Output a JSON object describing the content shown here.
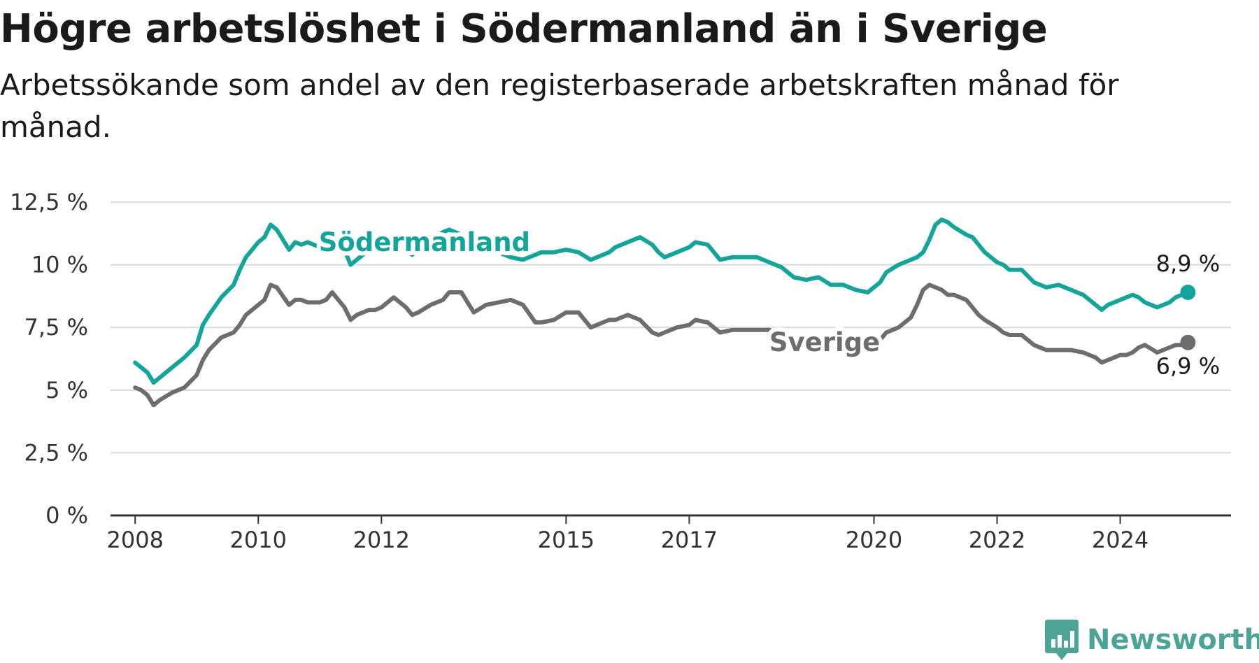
{
  "title": "Högre arbetslöshet i Södermanland än i Sverige",
  "subtitle": "Arbetssökande som andel av den registerbaserade arbetskraften månad för månad.",
  "brand": {
    "name": "Newsworthy",
    "icon": "newsworthy-logo-icon",
    "color": "#4da396"
  },
  "chart_data": {
    "type": "line",
    "title": "Högre arbetslöshet i Södermanland än i Sverige",
    "subtitle": "Arbetssökande som andel av den registerbaserade arbetskraften månad för månad.",
    "xlabel": "",
    "ylabel": "",
    "xlim": [
      2007.6,
      2025.8
    ],
    "ylim": [
      0,
      12.5
    ],
    "x_ticks": [
      {
        "value": 2008,
        "label": "2008"
      },
      {
        "value": 2010,
        "label": "2010"
      },
      {
        "value": 2012,
        "label": "2012"
      },
      {
        "value": 2015,
        "label": "2015"
      },
      {
        "value": 2017,
        "label": "2017"
      },
      {
        "value": 2020,
        "label": "2020"
      },
      {
        "value": 2022,
        "label": "2022"
      },
      {
        "value": 2024,
        "label": "2024"
      }
    ],
    "y_ticks": [
      {
        "value": 0,
        "label": "0 %"
      },
      {
        "value": 2.5,
        "label": "2,5 %"
      },
      {
        "value": 5,
        "label": "5 %"
      },
      {
        "value": 7.5,
        "label": "7,5 %"
      },
      {
        "value": 10,
        "label": "10 %"
      },
      {
        "value": 12.5,
        "label": "12,5 %"
      }
    ],
    "grid": true,
    "legend": "inline labels",
    "series": [
      {
        "name": "Södermanland",
        "color": "#14a49a",
        "end_label": "8,9 %",
        "x": [
          2008.0,
          2008.1,
          2008.2,
          2008.3,
          2008.4,
          2008.6,
          2008.8,
          2009.0,
          2009.1,
          2009.2,
          2009.4,
          2009.6,
          2009.7,
          2009.8,
          2009.9,
          2010.0,
          2010.1,
          2010.2,
          2010.3,
          2010.5,
          2010.6,
          2010.7,
          2010.8,
          2010.9,
          2011.0,
          2011.1,
          2011.2,
          2011.4,
          2011.5,
          2011.6,
          2011.7,
          2011.8,
          2011.9,
          2012.0,
          2012.2,
          2012.4,
          2012.5,
          2012.6,
          2012.8,
          2013.0,
          2013.1,
          2013.3,
          2013.5,
          2013.7,
          2013.9,
          2014.1,
          2014.3,
          2014.5,
          2014.6,
          2014.8,
          2015.0,
          2015.2,
          2015.4,
          2015.6,
          2015.7,
          2015.8,
          2016.0,
          2016.2,
          2016.4,
          2016.5,
          2016.6,
          2016.8,
          2017.0,
          2017.1,
          2017.3,
          2017.5,
          2017.7,
          2017.9,
          2018.1,
          2018.3,
          2018.5,
          2018.7,
          2018.9,
          2019.1,
          2019.3,
          2019.5,
          2019.7,
          2019.9,
          2020.1,
          2020.2,
          2020.4,
          2020.6,
          2020.7,
          2020.8,
          2020.9,
          2021.0,
          2021.1,
          2021.2,
          2021.3,
          2021.5,
          2021.6,
          2021.7,
          2021.8,
          2022.0,
          2022.1,
          2022.2,
          2022.4,
          2022.6,
          2022.8,
          2023.0,
          2023.1,
          2023.2,
          2023.4,
          2023.6,
          2023.7,
          2023.8,
          2024.0,
          2024.1,
          2024.2,
          2024.3,
          2024.4,
          2024.6,
          2024.8,
          2024.9,
          2025.0,
          2025.1
        ],
        "y": [
          6.1,
          5.9,
          5.7,
          5.3,
          5.5,
          5.9,
          6.3,
          6.8,
          7.6,
          8.0,
          8.7,
          9.2,
          9.8,
          10.3,
          10.6,
          10.9,
          11.1,
          11.6,
          11.4,
          10.6,
          10.9,
          10.8,
          10.9,
          10.8,
          10.7,
          10.6,
          11.1,
          10.6,
          10.0,
          10.2,
          10.4,
          10.6,
          10.7,
          10.8,
          10.8,
          10.6,
          10.4,
          10.6,
          11.0,
          11.3,
          11.4,
          11.2,
          10.9,
          10.6,
          10.5,
          10.3,
          10.2,
          10.4,
          10.5,
          10.5,
          10.6,
          10.5,
          10.2,
          10.4,
          10.5,
          10.7,
          10.9,
          11.1,
          10.8,
          10.5,
          10.3,
          10.5,
          10.7,
          10.9,
          10.8,
          10.2,
          10.3,
          10.3,
          10.3,
          10.1,
          9.9,
          9.5,
          9.4,
          9.5,
          9.2,
          9.2,
          9.0,
          8.9,
          9.3,
          9.7,
          10.0,
          10.2,
          10.3,
          10.5,
          11.0,
          11.6,
          11.8,
          11.7,
          11.5,
          11.2,
          11.1,
          10.8,
          10.5,
          10.1,
          10.0,
          9.8,
          9.8,
          9.3,
          9.1,
          9.2,
          9.1,
          9.0,
          8.8,
          8.4,
          8.2,
          8.4,
          8.6,
          8.7,
          8.8,
          8.7,
          8.5,
          8.3,
          8.5,
          8.7,
          8.8,
          8.9
        ]
      },
      {
        "name": "Sverige",
        "color": "#6d6c71",
        "end_label": "6,9 %",
        "x": [
          2008.0,
          2008.1,
          2008.2,
          2008.3,
          2008.4,
          2008.6,
          2008.8,
          2009.0,
          2009.1,
          2009.2,
          2009.4,
          2009.6,
          2009.7,
          2009.8,
          2009.9,
          2010.0,
          2010.1,
          2010.2,
          2010.3,
          2010.5,
          2010.6,
          2010.7,
          2010.8,
          2010.9,
          2011.0,
          2011.1,
          2011.2,
          2011.4,
          2011.5,
          2011.6,
          2011.7,
          2011.8,
          2011.9,
          2012.0,
          2012.2,
          2012.4,
          2012.5,
          2012.6,
          2012.8,
          2013.0,
          2013.1,
          2013.3,
          2013.5,
          2013.7,
          2013.9,
          2014.1,
          2014.3,
          2014.5,
          2014.6,
          2014.8,
          2015.0,
          2015.2,
          2015.4,
          2015.6,
          2015.7,
          2015.8,
          2016.0,
          2016.2,
          2016.4,
          2016.5,
          2016.6,
          2016.8,
          2017.0,
          2017.1,
          2017.3,
          2017.5,
          2017.7,
          2017.9,
          2018.1,
          2018.3,
          2018.5,
          2018.7,
          2018.9,
          2019.1,
          2019.3,
          2019.5,
          2019.7,
          2019.9,
          2020.1,
          2020.2,
          2020.4,
          2020.6,
          2020.7,
          2020.8,
          2020.9,
          2021.0,
          2021.1,
          2021.2,
          2021.3,
          2021.5,
          2021.6,
          2021.7,
          2021.8,
          2022.0,
          2022.1,
          2022.2,
          2022.4,
          2022.6,
          2022.8,
          2023.0,
          2023.1,
          2023.2,
          2023.4,
          2023.6,
          2023.7,
          2023.8,
          2024.0,
          2024.1,
          2024.2,
          2024.3,
          2024.4,
          2024.6,
          2024.8,
          2024.9,
          2025.0,
          2025.1
        ],
        "y": [
          5.1,
          5.0,
          4.8,
          4.4,
          4.6,
          4.9,
          5.1,
          5.6,
          6.2,
          6.6,
          7.1,
          7.3,
          7.6,
          8.0,
          8.2,
          8.4,
          8.6,
          9.2,
          9.1,
          8.4,
          8.6,
          8.6,
          8.5,
          8.5,
          8.5,
          8.6,
          8.9,
          8.3,
          7.8,
          8.0,
          8.1,
          8.2,
          8.2,
          8.3,
          8.7,
          8.3,
          8.0,
          8.1,
          8.4,
          8.6,
          8.9,
          8.9,
          8.1,
          8.4,
          8.5,
          8.6,
          8.4,
          7.7,
          7.7,
          7.8,
          8.1,
          8.1,
          7.5,
          7.7,
          7.8,
          7.8,
          8.0,
          7.8,
          7.3,
          7.2,
          7.3,
          7.5,
          7.6,
          7.8,
          7.7,
          7.3,
          7.4,
          7.4,
          7.4,
          7.4,
          7.2,
          7.0,
          6.9,
          7.0,
          6.7,
          6.6,
          6.6,
          6.7,
          7.0,
          7.3,
          7.5,
          7.9,
          8.4,
          9.0,
          9.2,
          9.1,
          9.0,
          8.8,
          8.8,
          8.6,
          8.3,
          8.0,
          7.8,
          7.5,
          7.3,
          7.2,
          7.2,
          6.8,
          6.6,
          6.6,
          6.6,
          6.6,
          6.5,
          6.3,
          6.1,
          6.2,
          6.4,
          6.4,
          6.5,
          6.7,
          6.8,
          6.5,
          6.7,
          6.8,
          6.8,
          6.9
        ]
      }
    ],
    "annotations": [
      {
        "text": "Södermanland",
        "series": "Södermanland",
        "x": 2012.7,
        "y": 10.9,
        "color": "#14a49a"
      },
      {
        "text": "Sverige",
        "series": "Sverige",
        "x": 2019.2,
        "y": 6.9,
        "color": "#6d6c71"
      }
    ]
  }
}
